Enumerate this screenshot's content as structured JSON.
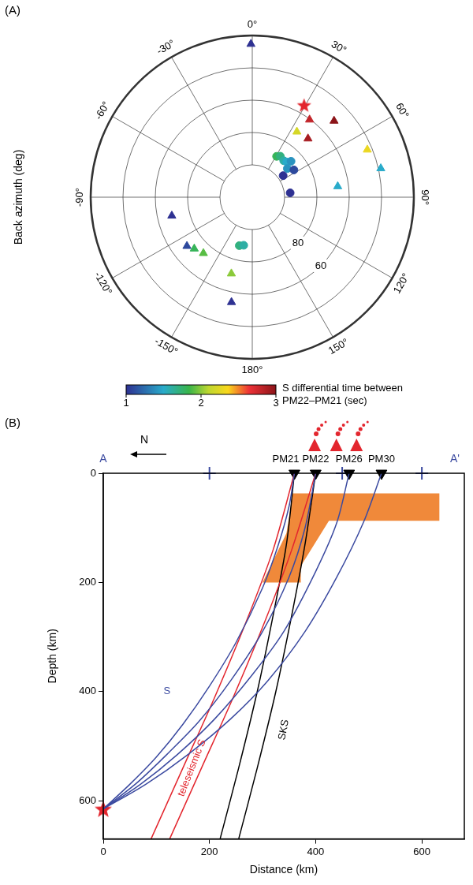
{
  "chart_data": [
    {
      "type": "polar_scatter",
      "panel": "(A)",
      "axis_label": "Back azimuth (deg)",
      "theta_ticks": [
        {
          "value": 0,
          "label": "0°"
        },
        {
          "value": 30,
          "label": "30°"
        },
        {
          "value": 60,
          "label": "60°"
        },
        {
          "value": 90,
          "label": "90°"
        },
        {
          "value": 120,
          "label": "120°"
        },
        {
          "value": 150,
          "label": "150°"
        },
        {
          "value": 180,
          "label": "180°"
        },
        {
          "value": -150,
          "label": "-150°"
        },
        {
          "value": -120,
          "label": "-120°"
        },
        {
          "value": -90,
          "label": "-90°"
        },
        {
          "value": -60,
          "label": "-60°"
        },
        {
          "value": -30,
          "label": "-30°"
        }
      ],
      "rlim": [
        120,
        20
      ],
      "rticks": [
        80,
        60
      ],
      "colorbar": {
        "label": "S differential time between PM22–PM21 (sec)",
        "range": [
          1,
          3
        ],
        "ticks": [
          1,
          2,
          3
        ]
      },
      "series": [
        {
          "marker": "star",
          "color": "#e3262e",
          "back_azimuth": [
            29.4
          ],
          "distance": [
            54.7
          ]
        },
        {
          "marker": "triangle",
          "back_azimuth": [
            36.5,
            47.0,
            34.3,
            43.6,
            67.6,
            77.4,
            82.8,
            -0.5,
            -103.0,
            -126.8,
            -131.6,
            -138.9,
            -164.7,
            -168.8
          ],
          "distance": [
            60.4,
            50.8,
            71.0,
            70.0,
            43.0,
            38.5,
            66.7,
            25.3,
            68.9,
            69.5,
            72.0,
            74.0,
            71.0,
            53.8
          ],
          "dt": [
            2.8,
            3.0,
            2.2,
            2.9,
            2.3,
            1.5,
            1.5,
            1.0,
            1.0,
            1.1,
            1.8,
            1.9,
            2.0,
            1.0
          ]
        },
        {
          "marker": "circle",
          "back_azimuth": [
            30.8,
            34.4,
            40.8,
            44.4,
            47.2,
            50.8,
            56.8,
            55.1,
            83.5,
            -165.0,
            -169.9
          ],
          "distance": [
            90.6,
            89.3,
            90.2,
            89.5,
            87.3,
            92.0,
            89.2,
            96.7,
            96.4,
            89.0,
            89.8
          ],
          "dt": [
            1.8,
            1.7,
            1.6,
            1.5,
            1.4,
            1.4,
            1.1,
            1.0,
            1.0,
            1.7,
            1.6
          ]
        }
      ]
    },
    {
      "type": "cross_section",
      "panel": "(B)",
      "xlabel": "Distance (km)",
      "ylabel": "Depth (km)",
      "xlim": [
        0,
        680
      ],
      "xticks": [
        0,
        200,
        400,
        600
      ],
      "ylim": [
        0,
        670
      ],
      "yticks": [
        0,
        200,
        400,
        600
      ],
      "profile": {
        "start_label": "A",
        "end_label": "A'",
        "north_label": "N",
        "color": "#3b4aa0",
        "marks_x": [
          200,
          450,
          600
        ]
      },
      "stations": {
        "names": [
          "PM21",
          "PM22",
          "PM26",
          "PM30"
        ],
        "x": [
          360,
          400,
          463,
          524
        ],
        "color": "#000000"
      },
      "volcanoes": {
        "x": [
          398,
          439,
          477
        ],
        "color": "#e3262e"
      },
      "source": {
        "x": 0,
        "depth": 615,
        "color": "#e3262e",
        "marker": "star"
      },
      "slab": {
        "x": [
          357,
          633,
          633,
          425,
          372,
          372,
          300,
          345
        ],
        "depth": [
          37,
          37,
          87,
          87,
          170,
          200,
          200,
          110
        ],
        "color": "#f0893a"
      },
      "series": [
        {
          "name": "S",
          "color": "#3b4aa0",
          "rays": [
            {
              "x": [
                0,
                50,
                100,
                150,
                200,
                250,
                300,
                330,
                350,
                360
              ],
              "depth": [
                615,
                570,
                520,
                460,
                390,
                310,
                210,
                130,
                60,
                0
              ]
            },
            {
              "x": [
                0,
                60,
                120,
                180,
                240,
                300,
                350,
                380,
                400
              ],
              "depth": [
                615,
                570,
                515,
                455,
                380,
                290,
                190,
                100,
                0
              ]
            },
            {
              "x": [
                0,
                70,
                140,
                210,
                280,
                340,
                400,
                440,
                463
              ],
              "depth": [
                615,
                570,
                515,
                450,
                370,
                290,
                180,
                90,
                0
              ]
            },
            {
              "x": [
                0,
                80,
                160,
                240,
                310,
                380,
                440,
                490,
                524
              ],
              "depth": [
                615,
                570,
                515,
                450,
                380,
                290,
                190,
                90,
                0
              ]
            }
          ]
        },
        {
          "name": "teleseismic S",
          "color": "#e3262e",
          "rays": [
            {
              "x": [
                90,
                150,
                210,
                270,
                320,
                360
              ],
              "depth": [
                670,
                540,
                410,
                270,
                140,
                0
              ]
            },
            {
              "x": [
                125,
                185,
                245,
                305,
                355,
                400
              ],
              "depth": [
                670,
                540,
                410,
                270,
                140,
                0
              ]
            }
          ]
        },
        {
          "name": "SKS",
          "color": "#000000",
          "rays": [
            {
              "x": [
                220,
                255,
                290,
                320,
                345,
                360
              ],
              "depth": [
                670,
                540,
                400,
                260,
                130,
                0
              ]
            },
            {
              "x": [
                255,
                290,
                325,
                355,
                380,
                400
              ],
              "depth": [
                670,
                540,
                400,
                260,
                130,
                0
              ]
            }
          ]
        }
      ]
    }
  ]
}
